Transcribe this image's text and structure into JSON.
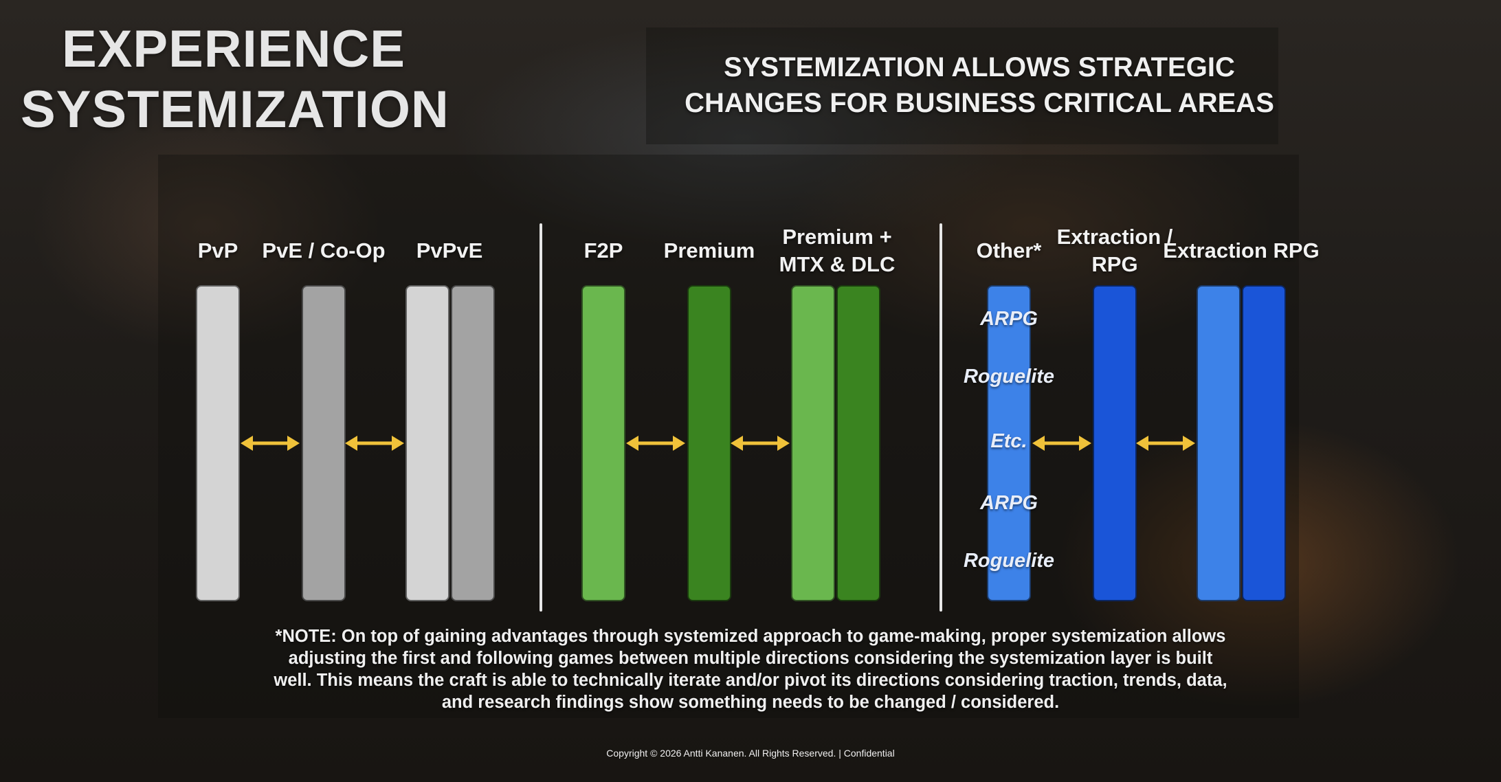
{
  "title": {
    "line1": "EXPERIENCE",
    "line2": "SYSTEMIZATION"
  },
  "subtitle": {
    "line1": "SYSTEMIZATION ALLOWS STRATEGIC",
    "line2": "CHANGES FOR BUSINESS CRITICAL AREAS"
  },
  "colors": {
    "gray_light": "#d4d4d4",
    "gray_dark": "#a3a3a3",
    "green_light": "#6ab74e",
    "green_dark": "#3a8420",
    "blue_light": "#3d82e8",
    "blue_dark": "#1a55d8",
    "arrow": "#f0c23a",
    "divider": "#e6e6e6"
  },
  "groups": [
    {
      "name": "mode",
      "columns": [
        {
          "label": "PvP",
          "bars": [
            "gray_light"
          ]
        },
        {
          "label": "PvE / Co-Op",
          "bars": [
            "gray_dark"
          ]
        },
        {
          "label": "PvPvE",
          "bars": [
            "gray_light",
            "gray_dark"
          ]
        }
      ]
    },
    {
      "name": "business",
      "columns": [
        {
          "label": "F2P",
          "bars": [
            "green_light"
          ]
        },
        {
          "label": "Premium",
          "bars": [
            "green_dark"
          ]
        },
        {
          "label": "Premium + MTX & DLC",
          "bars": [
            "green_light",
            "green_dark"
          ]
        }
      ]
    },
    {
      "name": "genre",
      "columns": [
        {
          "label": "Other*",
          "bars": [
            "blue_light"
          ]
        },
        {
          "label": "Extraction / RPG",
          "bars": [
            "blue_dark"
          ]
        },
        {
          "label": "Extraction RPG",
          "bars": [
            "blue_light",
            "blue_dark"
          ]
        }
      ]
    }
  ],
  "other_items": [
    "ARPG",
    "Roguelite",
    "Etc.",
    "ARPG",
    "Roguelite"
  ],
  "note": "*NOTE: On top of gaining advantages through systemized approach to game-making, proper systemization allows adjusting the first and following games between multiple directions considering the systemization layer is built well. This means the craft is able to technically iterate and/or pivot its directions considering traction, trends, data, and research findings show something needs to be changed / considered.",
  "footer": "Copyright © 2026 Antti Kananen. All Rights Reserved. | Confidential"
}
